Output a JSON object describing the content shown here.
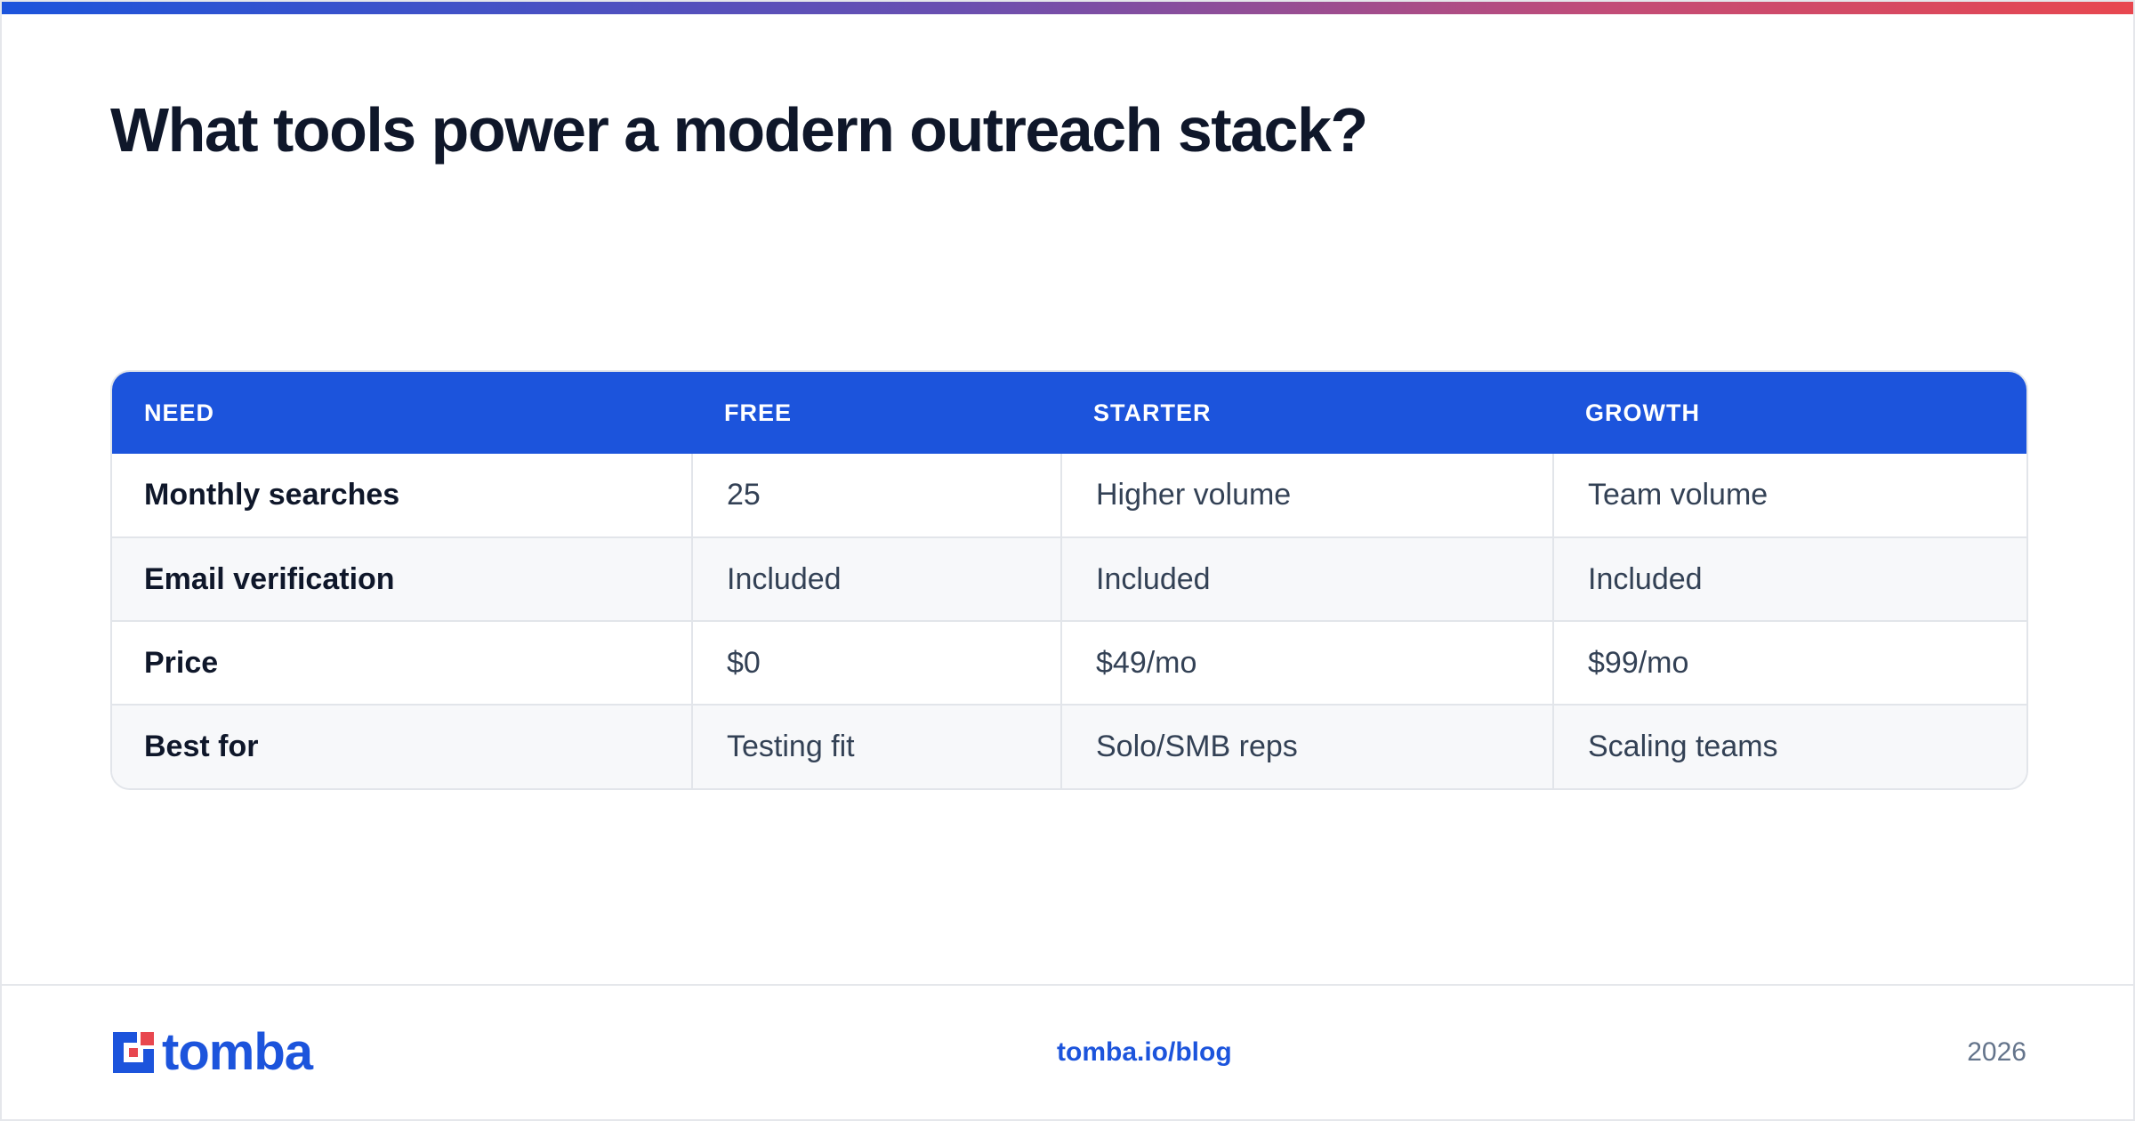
{
  "header": {
    "title": "What tools power a modern outreach stack?"
  },
  "table": {
    "columns": [
      "NEED",
      "FREE",
      "STARTER",
      "GROWTH"
    ],
    "rows": [
      [
        "Monthly searches",
        "25",
        "Higher volume",
        "Team volume"
      ],
      [
        "Email verification",
        "Included",
        "Included",
        "Included"
      ],
      [
        "Price",
        "$0",
        "$49/mo",
        "$99/mo"
      ],
      [
        "Best for",
        "Testing fit",
        "Solo/SMB reps",
        "Scaling teams"
      ]
    ]
  },
  "footer": {
    "logo_text": "tomba",
    "site": "tomba.io/blog",
    "year": "2026"
  },
  "colors": {
    "brand_blue": "#1c54dc",
    "accent_red": "#e8474f"
  }
}
